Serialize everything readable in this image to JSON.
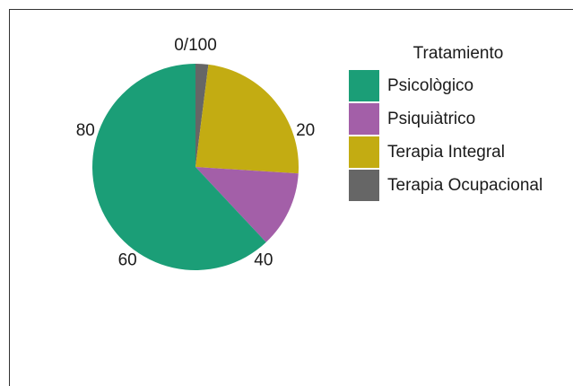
{
  "chart_data": {
    "type": "pie",
    "legend_title": "Tratamiento",
    "categories": [
      "Psicològico",
      "Psiquiàtrico",
      "Terapia Integral",
      "Terapia Ocupacional"
    ],
    "values": [
      62,
      12,
      24,
      2
    ],
    "colors": [
      "#1b9e77",
      "#a35fa8",
      "#c3ac12",
      "#666666"
    ],
    "lim": [
      0,
      100
    ],
    "ticks": [
      {
        "value": 0,
        "label": "0/100"
      },
      20,
      40,
      60,
      80
    ]
  }
}
